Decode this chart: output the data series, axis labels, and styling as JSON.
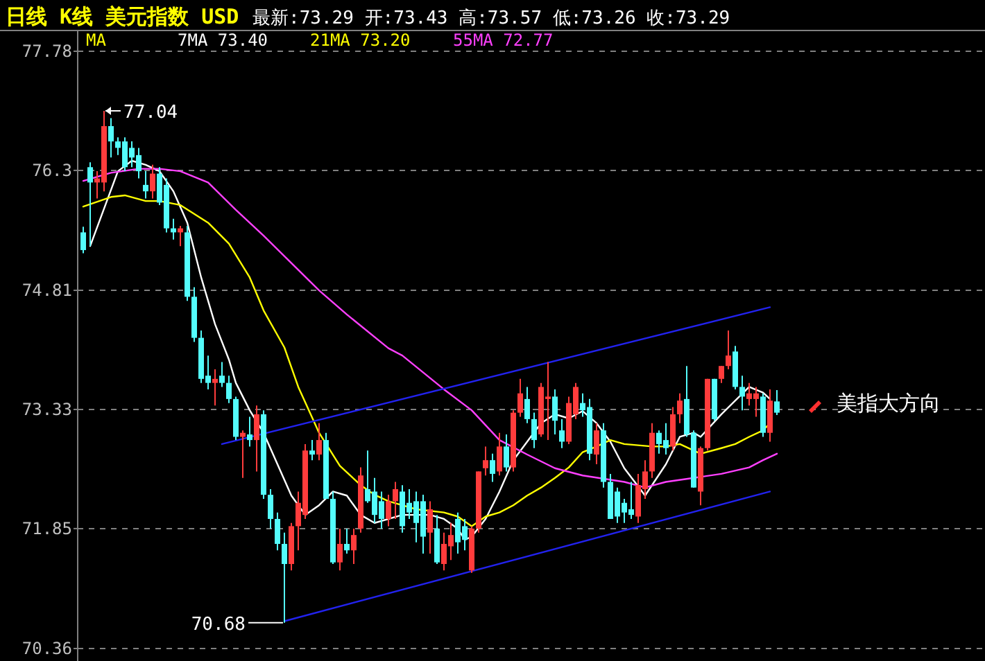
{
  "chart_data": {
    "type": "candlestick",
    "title": "日线 K线 美元指数  USD",
    "subtitle": "最新:73.29  开:73.43  高:73.57  低:73.26  收:73.29",
    "categories": [
      null,
      null,
      null,
      null,
      null,
      null,
      null,
      null,
      null,
      null,
      null,
      null,
      null,
      null,
      null,
      null,
      null,
      null,
      null,
      null,
      null,
      null,
      null,
      null,
      null,
      null,
      null,
      null,
      null,
      null,
      null,
      null,
      null,
      null,
      null,
      null,
      null,
      null,
      null,
      null,
      null,
      null,
      null,
      null,
      null,
      null,
      null,
      null,
      null,
      null,
      null,
      null,
      null,
      null,
      null,
      null,
      null,
      null,
      null,
      null,
      null,
      null,
      null,
      null,
      null,
      null,
      null,
      null,
      null,
      null,
      null,
      null,
      null,
      null,
      null,
      null,
      null,
      null,
      null,
      null,
      null,
      null,
      null,
      null,
      null,
      null,
      null,
      null,
      null,
      null,
      null,
      null,
      null,
      null,
      null,
      null,
      null,
      null,
      null,
      null,
      null
    ],
    "ohlc": [
      [
        75.53,
        75.6,
        75.27,
        75.31
      ],
      [
        76.34,
        76.4,
        75.36,
        76.15
      ],
      [
        76.15,
        76.29,
        75.95,
        76.2
      ],
      [
        76.15,
        77.04,
        76.04,
        76.85
      ],
      [
        76.85,
        76.95,
        76.46,
        76.66
      ],
      [
        76.66,
        76.71,
        76.49,
        76.58
      ],
      [
        76.66,
        76.71,
        76.29,
        76.34
      ],
      [
        76.58,
        76.66,
        76.34,
        76.46
      ],
      [
        76.49,
        76.58,
        76.2,
        76.29
      ],
      [
        76.12,
        76.29,
        75.95,
        76.04
      ],
      [
        76.04,
        76.37,
        75.95,
        76.26
      ],
      [
        76.26,
        76.34,
        75.87,
        75.9
      ],
      [
        76.12,
        76.2,
        75.53,
        75.58
      ],
      [
        75.58,
        75.7,
        75.44,
        75.53
      ],
      [
        75.53,
        75.61,
        75.36,
        75.58
      ],
      [
        75.53,
        75.61,
        74.68,
        74.73
      ],
      [
        74.73,
        74.85,
        74.17,
        74.22
      ],
      [
        74.22,
        74.31,
        73.66,
        73.71
      ],
      [
        73.75,
        74.0,
        73.58,
        73.66
      ],
      [
        73.66,
        73.83,
        73.38,
        73.71
      ],
      [
        73.75,
        73.92,
        73.61,
        73.66
      ],
      [
        73.66,
        73.75,
        73.41,
        73.46
      ],
      [
        73.46,
        73.49,
        72.95,
        72.99
      ],
      [
        72.99,
        73.07,
        72.48,
        73.04
      ],
      [
        73.02,
        73.24,
        72.87,
        72.95
      ],
      [
        72.95,
        73.38,
        72.56,
        73.27
      ],
      [
        73.27,
        73.32,
        72.22,
        72.27
      ],
      [
        72.27,
        72.34,
        71.85,
        71.97
      ],
      [
        71.97,
        72.05,
        71.58,
        71.66
      ],
      [
        71.66,
        71.8,
        70.68,
        71.41
      ],
      [
        71.41,
        71.92,
        71.33,
        71.88
      ],
      [
        71.88,
        72.31,
        71.58,
        72.17
      ],
      [
        72.02,
        72.9,
        71.97,
        72.82
      ],
      [
        72.82,
        72.95,
        72.7,
        72.77
      ],
      [
        72.77,
        73.16,
        72.7,
        72.95
      ],
      [
        72.95,
        73.04,
        72.22,
        72.22
      ],
      [
        72.22,
        72.31,
        71.41,
        71.43
      ],
      [
        71.43,
        71.85,
        71.33,
        71.66
      ],
      [
        71.66,
        71.85,
        71.54,
        71.58
      ],
      [
        71.58,
        71.85,
        71.41,
        71.77
      ],
      [
        71.85,
        72.61,
        71.8,
        72.51
      ],
      [
        72.34,
        72.82,
        72.17,
        72.19
      ],
      [
        72.31,
        72.48,
        71.92,
        72.02
      ],
      [
        72.19,
        72.31,
        71.85,
        71.97
      ],
      [
        71.97,
        72.27,
        71.88,
        72.19
      ],
      [
        72.19,
        72.43,
        71.97,
        72.34
      ],
      [
        72.31,
        72.39,
        71.8,
        71.88
      ],
      [
        72.17,
        72.34,
        71.97,
        72.05
      ],
      [
        72.19,
        72.31,
        71.68,
        71.92
      ],
      [
        72.19,
        72.27,
        71.54,
        71.75
      ],
      [
        71.8,
        72.19,
        71.54,
        72.09
      ],
      [
        71.85,
        72.02,
        71.41,
        71.43
      ],
      [
        71.41,
        71.8,
        71.33,
        71.66
      ],
      [
        71.63,
        71.92,
        71.46,
        71.77
      ],
      [
        71.97,
        72.05,
        71.54,
        71.68
      ],
      [
        71.88,
        71.97,
        71.58,
        71.71
      ],
      [
        71.33,
        71.88,
        71.3,
        71.85
      ],
      [
        71.85,
        72.56,
        71.8,
        72.56
      ],
      [
        72.6,
        72.87,
        72.51,
        72.7
      ],
      [
        72.7,
        72.78,
        72.43,
        72.53
      ],
      [
        72.56,
        73.04,
        72.51,
        72.87
      ],
      [
        72.87,
        73.02,
        72.56,
        72.61
      ],
      [
        72.61,
        73.32,
        72.56,
        73.29
      ],
      [
        73.29,
        73.71,
        73.24,
        73.53
      ],
      [
        73.46,
        73.61,
        73.16,
        73.21
      ],
      [
        73.21,
        73.29,
        72.85,
        72.95
      ],
      [
        73.02,
        73.66,
        72.99,
        73.61
      ],
      [
        73.46,
        73.92,
        72.95,
        73.49
      ],
      [
        73.49,
        73.58,
        73.02,
        73.19
      ],
      [
        73.07,
        73.21,
        72.85,
        72.93
      ],
      [
        72.93,
        73.49,
        72.9,
        73.41
      ],
      [
        73.27,
        73.66,
        73.21,
        73.61
      ],
      [
        73.41,
        73.53,
        73.24,
        73.32
      ],
      [
        73.36,
        73.46,
        72.7,
        72.78
      ],
      [
        72.77,
        73.16,
        72.65,
        73.07
      ],
      [
        73.07,
        73.16,
        72.36,
        72.43
      ],
      [
        72.43,
        72.53,
        71.97,
        71.97
      ],
      [
        72.31,
        72.36,
        71.92,
        72.0
      ],
      [
        72.17,
        72.22,
        71.92,
        72.05
      ],
      [
        72.09,
        72.43,
        71.97,
        72.02
      ],
      [
        72.0,
        72.53,
        71.92,
        72.39
      ],
      [
        72.34,
        72.7,
        72.22,
        72.56
      ],
      [
        72.56,
        73.16,
        72.48,
        73.04
      ],
      [
        73.04,
        73.07,
        72.78,
        72.9
      ],
      [
        72.95,
        73.16,
        72.77,
        72.85
      ],
      [
        72.87,
        73.36,
        72.82,
        73.27
      ],
      [
        73.27,
        73.53,
        73.16,
        73.44
      ],
      [
        73.46,
        73.87,
        72.99,
        73.02
      ],
      [
        73.04,
        73.07,
        72.36,
        72.36
      ],
      [
        72.31,
        72.87,
        72.14,
        72.85
      ],
      [
        72.85,
        73.71,
        72.82,
        73.71
      ],
      [
        73.71,
        73.71,
        73.19,
        73.21
      ],
      [
        73.71,
        73.87,
        73.66,
        73.87
      ],
      [
        73.87,
        74.31,
        73.83,
        74.0
      ],
      [
        74.05,
        74.12,
        73.58,
        73.61
      ],
      [
        73.61,
        73.75,
        73.32,
        73.49
      ],
      [
        73.46,
        73.66,
        73.38,
        73.53
      ],
      [
        73.46,
        73.61,
        73.24,
        73.53
      ],
      [
        73.49,
        73.53,
        72.99,
        73.04
      ],
      [
        73.04,
        73.58,
        72.93,
        73.44
      ],
      [
        73.43,
        73.57,
        73.26,
        73.29
      ]
    ],
    "colors": [
      "#54fcfc",
      "#54fcfc",
      "#ff3c3c",
      "#ff3c3c",
      "#54fcfc",
      "#54fcfc",
      "#54fcfc",
      "#54fcfc",
      "#54fcfc",
      "#54fcfc",
      "#ff3c3c",
      "#54fcfc",
      "#54fcfc",
      "#54fcfc",
      "#ff3c3c",
      "#54fcfc",
      "#54fcfc",
      "#54fcfc",
      "#54fcfc",
      "#ff3c3c",
      "#54fcfc",
      "#54fcfc",
      "#54fcfc",
      "#ff3c3c",
      "#54fcfc",
      "#ff3c3c",
      "#54fcfc",
      "#54fcfc",
      "#54fcfc",
      "#54fcfc",
      "#ff3c3c",
      "#ff3c3c",
      "#ff3c3c",
      "#54fcfc",
      "#ff3c3c",
      "#54fcfc",
      "#54fcfc",
      "#ff3c3c",
      "#54fcfc",
      "#ff3c3c",
      "#ff3c3c",
      "#54fcfc",
      "#54fcfc",
      "#54fcfc",
      "#ff3c3c",
      "#ff3c3c",
      "#54fcfc",
      "#54fcfc",
      "#54fcfc",
      "#54fcfc",
      "#ff3c3c",
      "#54fcfc",
      "#ff3c3c",
      "#ff3c3c",
      "#54fcfc",
      "#54fcfc",
      "#ff3c3c",
      "#ff3c3c",
      "#ff3c3c",
      "#54fcfc",
      "#ff3c3c",
      "#54fcfc",
      "#ff3c3c",
      "#ff3c3c",
      "#54fcfc",
      "#54fcfc",
      "#ff3c3c",
      "#ff3c3c",
      "#54fcfc",
      "#54fcfc",
      "#ff3c3c",
      "#ff3c3c",
      "#54fcfc",
      "#54fcfc",
      "#ff3c3c",
      "#54fcfc",
      "#54fcfc",
      "#54fcfc",
      "#54fcfc",
      "#54fcfc",
      "#ff3c3c",
      "#ff3c3c",
      "#ff3c3c",
      "#54fcfc",
      "#54fcfc",
      "#ff3c3c",
      "#ff3c3c",
      "#54fcfc",
      "#54fcfc",
      "#ff3c3c",
      "#ff3c3c",
      "#54fcfc",
      "#ff3c3c",
      "#ff3c3c",
      "#54fcfc",
      "#54fcfc",
      "#ff3c3c",
      "#ff3c3c",
      "#54fcfc",
      "#ff3c3c",
      "#54fcfc"
    ],
    "ylim": [
      70.36,
      77.78
    ],
    "yticks": [
      77.78,
      76.3,
      74.81,
      73.33,
      71.85,
      70.36
    ],
    "grid": "y",
    "legend": "top left",
    "series": [
      {
        "name": "7MA 73.40",
        "type": "line",
        "color": "#ffffff",
        "values": [
          null,
          75.36,
          null,
          null,
          null,
          76.29,
          null,
          76.42,
          null,
          76.37,
          null,
          76.29,
          null,
          76.04,
          null,
          75.65,
          null,
          74.97,
          null,
          74.39,
          null,
          73.95,
          73.66,
          null,
          73.32,
          null,
          73.04,
          null,
          72.65,
          null,
          72.26,
          null,
          72.02,
          null,
          72.14,
          null,
          72.31,
          null,
          72.26,
          null,
          72.02,
          null,
          71.92,
          null,
          null,
          null,
          72.02,
          null,
          null,
          null,
          72.02,
          null,
          71.97,
          null,
          71.85,
          71.71,
          71.75,
          null,
          71.97,
          null,
          72.31,
          null,
          72.7,
          null,
          72.93,
          null,
          73.16,
          null,
          73.27,
          null,
          73.22,
          null,
          73.31,
          null,
          73.16,
          null,
          72.93,
          null,
          72.6,
          null,
          null,
          72.26,
          null,
          null,
          72.65,
          null,
          72.99,
          null,
          73.04,
          72.99,
          null,
          null,
          73.27,
          null,
          73.44,
          null,
          73.61,
          null,
          73.54,
          73.46,
          null
        ]
      },
      {
        "name": "21MA 73.20",
        "type": "line",
        "color": "#ffff00",
        "values": [
          75.85,
          null,
          null,
          null,
          75.97,
          null,
          75.99,
          null,
          null,
          75.92,
          null,
          75.92,
          null,
          null,
          75.87,
          null,
          null,
          null,
          75.65,
          null,
          null,
          75.39,
          null,
          null,
          74.97,
          null,
          74.56,
          null,
          null,
          74.1,
          null,
          73.61,
          null,
          null,
          73.04,
          null,
          null,
          72.63,
          null,
          null,
          72.39,
          null,
          72.27,
          null,
          72.19,
          null,
          null,
          null,
          72.09,
          null,
          null,
          null,
          72.05,
          null,
          72.0,
          null,
          71.88,
          null,
          72.0,
          null,
          72.05,
          null,
          72.14,
          null,
          72.26,
          null,
          72.36,
          null,
          72.48,
          null,
          72.61,
          null,
          72.8,
          null,
          72.87,
          null,
          72.95,
          null,
          72.9,
          null,
          null,
          null,
          72.87,
          null,
          72.87,
          null,
          72.9,
          null,
          null,
          72.78,
          null,
          null,
          72.85,
          null,
          72.9,
          null,
          72.99,
          null,
          73.07,
          73.16,
          null
        ]
      },
      {
        "name": "55MA 72.77",
        "type": "line",
        "color": "#ff40ff",
        "values": [
          76.17,
          null,
          null,
          null,
          76.27,
          null,
          null,
          null,
          76.32,
          null,
          null,
          76.32,
          null,
          null,
          76.29,
          null,
          null,
          null,
          76.15,
          null,
          null,
          null,
          75.81,
          null,
          null,
          null,
          75.49,
          null,
          null,
          null,
          75.15,
          null,
          null,
          null,
          74.81,
          null,
          null,
          null,
          74.51,
          null,
          null,
          null,
          null,
          null,
          74.09,
          null,
          74.0,
          null,
          null,
          null,
          null,
          null,
          73.58,
          null,
          null,
          null,
          73.32,
          null,
          null,
          null,
          72.95,
          null,
          null,
          null,
          72.77,
          null,
          null,
          null,
          72.6,
          null,
          null,
          null,
          72.51,
          null,
          null,
          null,
          null,
          null,
          72.43,
          null,
          null,
          72.36,
          null,
          null,
          72.43,
          null,
          null,
          null,
          72.48,
          null,
          null,
          null,
          72.53,
          null,
          null,
          null,
          72.61,
          null,
          72.7,
          null,
          72.78
        ]
      },
      {
        "type": "line",
        "color": "#2222ee",
        "values": [
          null,
          null,
          null,
          null,
          null,
          null,
          null,
          null,
          null,
          null,
          null,
          null,
          null,
          null,
          null,
          null,
          null,
          null,
          null,
          null,
          72.9,
          null,
          null,
          null,
          null,
          null,
          null,
          null,
          null,
          null,
          null,
          null,
          null,
          null,
          null,
          null,
          null,
          null,
          null,
          null,
          null,
          null,
          null,
          null,
          null,
          null,
          null,
          null,
          null,
          null,
          null,
          null,
          null,
          null,
          null,
          null,
          null,
          null,
          null,
          null,
          null,
          null,
          null,
          null,
          null,
          null,
          null,
          null,
          null,
          null,
          null,
          null,
          null,
          null,
          null,
          null,
          null,
          null,
          null,
          null,
          null,
          null,
          null,
          null,
          null,
          null,
          null,
          null,
          null,
          null,
          null,
          null,
          null,
          null,
          null,
          null,
          null,
          null,
          null,
          74.6,
          null
        ]
      },
      {
        "type": "line",
        "color": "#2222ee",
        "values": [
          null,
          null,
          null,
          null,
          null,
          null,
          null,
          null,
          null,
          null,
          null,
          null,
          null,
          null,
          null,
          null,
          null,
          null,
          null,
          null,
          null,
          null,
          null,
          null,
          null,
          null,
          null,
          null,
          null,
          70.7,
          null,
          null,
          null,
          null,
          null,
          null,
          null,
          null,
          null,
          null,
          null,
          null,
          null,
          null,
          null,
          null,
          null,
          null,
          null,
          null,
          null,
          null,
          null,
          null,
          null,
          null,
          null,
          null,
          null,
          null,
          null,
          null,
          null,
          null,
          null,
          null,
          null,
          null,
          null,
          null,
          null,
          null,
          null,
          null,
          null,
          null,
          null,
          null,
          null,
          null,
          null,
          null,
          null,
          null,
          null,
          null,
          null,
          null,
          null,
          null,
          null,
          null,
          null,
          null,
          null,
          null,
          null,
          null,
          null,
          72.31,
          null
        ]
      }
    ],
    "annotations": [
      "MA",
      "77.04",
      "70.68",
      "美指大方向"
    ]
  }
}
